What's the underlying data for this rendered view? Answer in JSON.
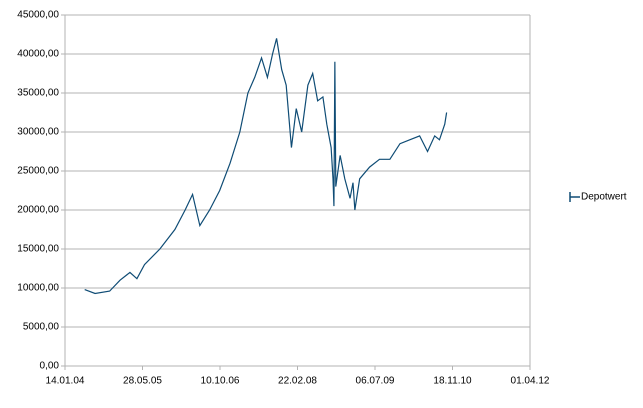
{
  "chart_data": {
    "type": "line",
    "x": [
      "20.05.04",
      "26.07.04",
      "28.10.04",
      "03.01.05",
      "08.03.05",
      "22.04.05",
      "10.06.05",
      "17.09.05",
      "23.12.05",
      "27.02.06",
      "16.04.06",
      "02.06.06",
      "04.08.06",
      "08.10.06",
      "14.12.06",
      "15.02.07",
      "08.04.07",
      "22.05.07",
      "05.07.07",
      "12.08.07",
      "14.09.07",
      "10.10.07",
      "12.11.07",
      "11.12.07",
      "14.01.08",
      "14.02.08",
      "20.03.08",
      "29.04.08",
      "30.05.08",
      "01.07.08",
      "04.08.08",
      "29.08.08",
      "26.09.08",
      "08.10.08",
      "14.10.08",
      "20.10.08",
      "26.10.08",
      "23.11.08",
      "23.12.08",
      "26.01.09",
      "14.02.09",
      "26.02.09",
      "29.03.09",
      "01.06.09",
      "04.08.09",
      "10.10.09",
      "14.12.09",
      "15.02.10",
      "20.04.10",
      "10.06.10",
      "26.07.10",
      "26.08.10",
      "29.09.10",
      "11.10.10"
    ],
    "series": [
      {
        "name": "Depotwert",
        "color": "#0f4c75",
        "values": [
          9800,
          9300,
          9600,
          11000,
          12000,
          11200,
          13000,
          15000,
          17500,
          20000,
          22000,
          18000,
          20000,
          22500,
          26000,
          30000,
          35000,
          37000,
          39500,
          37000,
          40000,
          42000,
          38000,
          36000,
          28000,
          33000,
          30000,
          36000,
          37500,
          34000,
          34500,
          31000,
          28000,
          24000,
          20500,
          39000,
          23000,
          27000,
          24000,
          21500,
          23500,
          20000,
          24000,
          25500,
          26500,
          26500,
          28500,
          29000,
          29500,
          27500,
          29500,
          29000,
          31000,
          32500
        ]
      }
    ],
    "xlim": [
      "14.01.04",
      "01.04.12"
    ],
    "xticks": [
      "14.01.04",
      "28.05.05",
      "10.10.06",
      "22.02.08",
      "06.07.09",
      "18.11.10",
      "01.04.12"
    ],
    "ylim": [
      0,
      45000
    ],
    "yticks": [
      {
        "value": 0,
        "label": "0,00"
      },
      {
        "value": 5000,
        "label": "5000,00"
      },
      {
        "value": 10000,
        "label": "10000,00"
      },
      {
        "value": 15000,
        "label": "15000,00"
      },
      {
        "value": 20000,
        "label": "20000,00"
      },
      {
        "value": 25000,
        "label": "25000,00"
      },
      {
        "value": 30000,
        "label": "30000,00"
      },
      {
        "value": 35000,
        "label": "35000,00"
      },
      {
        "value": 40000,
        "label": "40000,00"
      },
      {
        "value": 45000,
        "label": "45000,00"
      }
    ],
    "grid": true,
    "legend": "right"
  }
}
